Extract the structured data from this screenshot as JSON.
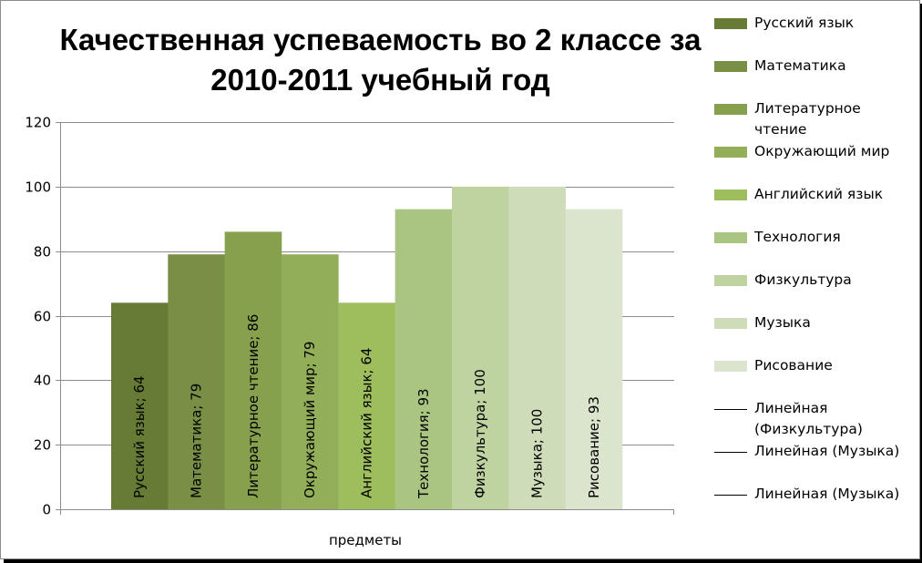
{
  "chart_data": {
    "type": "bar",
    "title": "Качественная успеваемость во 2 классе за 2010-2011 учебный год",
    "xlabel": "предметы",
    "ylabel": "",
    "ylim": [
      0,
      120
    ],
    "yticks": [
      0,
      20,
      40,
      60,
      80,
      100,
      120
    ],
    "grid": true,
    "legend_position": "right",
    "series": [
      {
        "name": "Русский язык",
        "value": 64,
        "label": "Русский язык; 64",
        "color": "#667c35"
      },
      {
        "name": "Математика",
        "value": 79,
        "label": "Математика; 79",
        "color": "#798f45"
      },
      {
        "name": "Литературное чтение",
        "value": 86,
        "label": "Литературное чтение; 86",
        "color": "#86a04e"
      },
      {
        "name": "Окружающий мир",
        "value": 79,
        "label": "Окружающий мир; 79",
        "color": "#92ae58"
      },
      {
        "name": "Английский язык",
        "value": 64,
        "label": "Английский язык; 64",
        "color": "#9ebd5d"
      },
      {
        "name": "Технология",
        "value": 93,
        "label": "Технология; 93",
        "color": "#aac582"
      },
      {
        "name": "Физкультура",
        "value": 100,
        "label": "Физкультура; 100",
        "color": "#bfd3a0"
      },
      {
        "name": "Музыка",
        "value": 100,
        "label": "Музыка; 100",
        "color": "#cfdcba"
      },
      {
        "name": "Рисование",
        "value": 93,
        "label": "Рисование; 93",
        "color": "#dbe4cc"
      }
    ],
    "trendlines": [
      {
        "name": "Линейная (Физкультура)",
        "color": "#000000"
      },
      {
        "name": "Линейная (Музыка)",
        "color": "#000000"
      },
      {
        "name": "Линейная (Музыка)",
        "color": "#000000"
      }
    ]
  }
}
